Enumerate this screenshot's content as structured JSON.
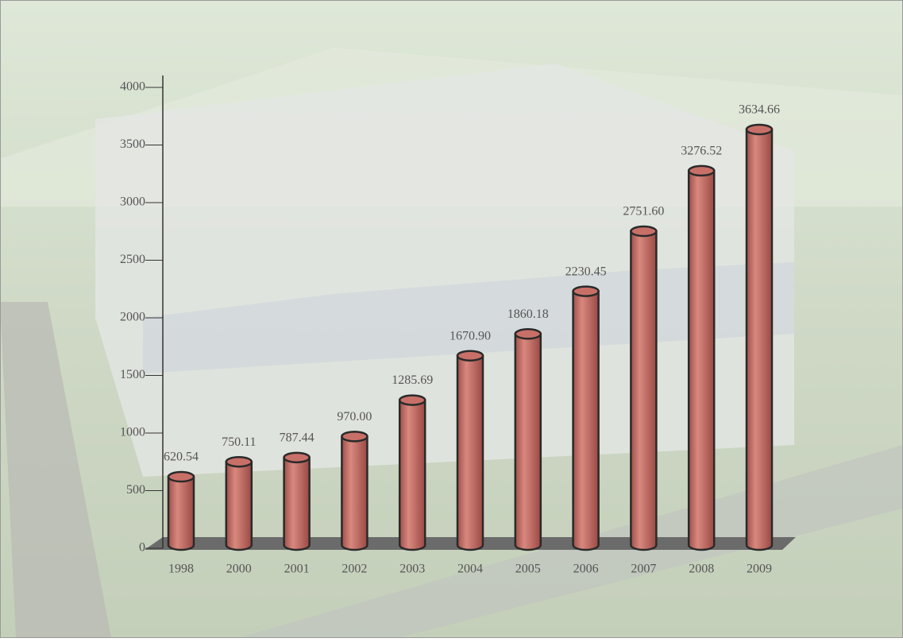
{
  "chart_data": {
    "type": "bar",
    "categories": [
      "1998",
      "2000",
      "2001",
      "2002",
      "2003",
      "2004",
      "2005",
      "2006",
      "2007",
      "2008",
      "2009"
    ],
    "values": [
      620.54,
      750.11,
      787.44,
      970.0,
      1285.69,
      1670.9,
      1860.18,
      2230.45,
      2751.6,
      3276.52,
      3634.66
    ],
    "value_labels": [
      "620.54",
      "750.11",
      "787.44",
      "970.00",
      "1285.69",
      "1670.90",
      "1860.18",
      "2230.45",
      "2751.60",
      "3276.52",
      "3634.66"
    ],
    "color": "#c87068",
    "ylim": [
      0,
      4000
    ],
    "yticks": [
      0,
      500,
      1000,
      1500,
      2000,
      2500,
      3000,
      3500,
      4000
    ]
  }
}
